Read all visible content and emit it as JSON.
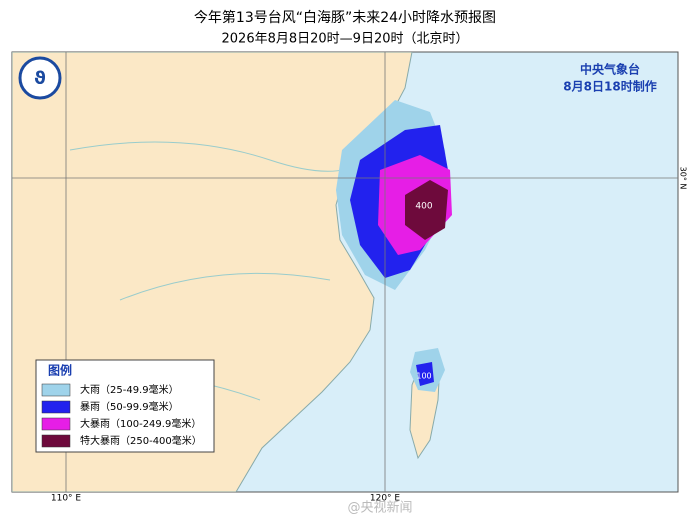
{
  "header": {
    "title": "今年第13号台风“白海豚”未来24小时降水预报图",
    "subtitle": "2026年8月8日20时—9日20时（北京时）"
  },
  "agency": {
    "name": "中央气象台",
    "made": "8月8日18时制作"
  },
  "legend": {
    "title": "图例",
    "items": [
      {
        "label": "大雨（25-49.9毫米）",
        "color": "#9fd3ea"
      },
      {
        "label": "暴雨（50-99.9毫米）",
        "color": "#2222ee"
      },
      {
        "label": "大暴雨（100-249.9毫米）",
        "color": "#e61ee6"
      },
      {
        "label": "特大暴雨（250-400毫米）",
        "color": "#6e0a3c"
      }
    ]
  },
  "map": {
    "lon_110": "110° E",
    "lon_120": "120° E",
    "lat_30": "30° N",
    "contour_labels": [
      "400",
      "100"
    ]
  },
  "watermark": "@央视新闻"
}
